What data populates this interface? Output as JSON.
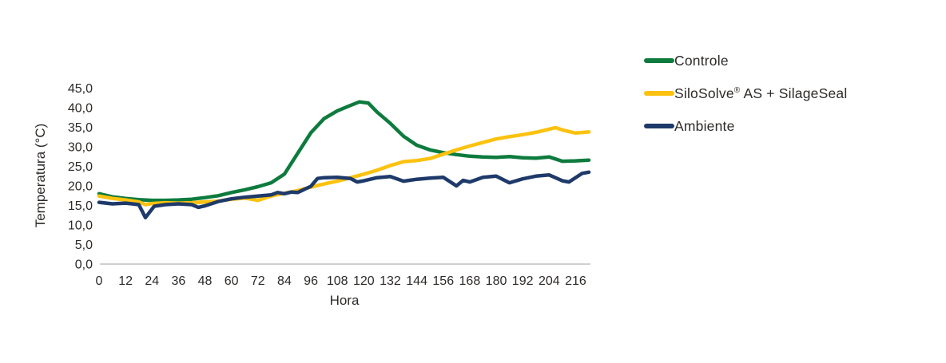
{
  "chart_data": {
    "type": "line",
    "title": "",
    "xlabel": "Hora",
    "ylabel": "Temperatura (°C)",
    "xlim": [
      0,
      222
    ],
    "ylim": [
      0,
      45
    ],
    "x_ticks": [
      0,
      12,
      24,
      36,
      48,
      60,
      72,
      84,
      96,
      108,
      120,
      132,
      144,
      156,
      168,
      180,
      192,
      204,
      216
    ],
    "y_tick_labels": [
      "0,0",
      "5,0",
      "10,0",
      "15,0",
      "20,0",
      "25,0",
      "30,0",
      "35,0",
      "40,0",
      "45,0"
    ],
    "grid": false,
    "legend_position": "right",
    "axis_line_color": "#c1c1c1",
    "text_color": "#2d2a28",
    "series": [
      {
        "name": "Controle",
        "color": "#0e7b3e",
        "points": [
          [
            0,
            18.0
          ],
          [
            6,
            17.2
          ],
          [
            12,
            16.8
          ],
          [
            18,
            16.5
          ],
          [
            24,
            16.3
          ],
          [
            30,
            16.3
          ],
          [
            36,
            16.4
          ],
          [
            42,
            16.6
          ],
          [
            48,
            17.0
          ],
          [
            54,
            17.5
          ],
          [
            60,
            18.3
          ],
          [
            66,
            19.0
          ],
          [
            72,
            19.8
          ],
          [
            78,
            20.8
          ],
          [
            84,
            23.0
          ],
          [
            90,
            28.3
          ],
          [
            96,
            33.6
          ],
          [
            102,
            37.2
          ],
          [
            108,
            39.2
          ],
          [
            114,
            40.6
          ],
          [
            118,
            41.5
          ],
          [
            122,
            41.2
          ],
          [
            126,
            38.9
          ],
          [
            132,
            36.0
          ],
          [
            138,
            32.7
          ],
          [
            144,
            30.4
          ],
          [
            150,
            29.2
          ],
          [
            156,
            28.5
          ],
          [
            162,
            28.0
          ],
          [
            168,
            27.6
          ],
          [
            174,
            27.4
          ],
          [
            180,
            27.3
          ],
          [
            186,
            27.5
          ],
          [
            192,
            27.2
          ],
          [
            198,
            27.1
          ],
          [
            204,
            27.4
          ],
          [
            210,
            26.3
          ],
          [
            216,
            26.4
          ],
          [
            222,
            26.6
          ]
        ]
      },
      {
        "name": "SiloSolve® AS + SilageSeal",
        "color": "#fcc20f",
        "points": [
          [
            0,
            17.4
          ],
          [
            6,
            16.8
          ],
          [
            12,
            16.4
          ],
          [
            18,
            15.9
          ],
          [
            21,
            15.2
          ],
          [
            24,
            15.5
          ],
          [
            30,
            15.7
          ],
          [
            36,
            15.6
          ],
          [
            42,
            15.7
          ],
          [
            48,
            15.9
          ],
          [
            54,
            16.1
          ],
          [
            60,
            16.6
          ],
          [
            66,
            16.9
          ],
          [
            72,
            16.3
          ],
          [
            78,
            17.4
          ],
          [
            84,
            18.1
          ],
          [
            90,
            18.8
          ],
          [
            96,
            19.7
          ],
          [
            102,
            20.5
          ],
          [
            108,
            21.2
          ],
          [
            114,
            22.1
          ],
          [
            120,
            23.0
          ],
          [
            126,
            24.0
          ],
          [
            132,
            25.2
          ],
          [
            138,
            26.2
          ],
          [
            144,
            26.5
          ],
          [
            150,
            27.0
          ],
          [
            156,
            28.1
          ],
          [
            162,
            29.2
          ],
          [
            168,
            30.2
          ],
          [
            174,
            31.1
          ],
          [
            180,
            32.0
          ],
          [
            186,
            32.6
          ],
          [
            192,
            33.1
          ],
          [
            198,
            33.7
          ],
          [
            204,
            34.5
          ],
          [
            207,
            34.9
          ],
          [
            210,
            34.3
          ],
          [
            216,
            33.5
          ],
          [
            222,
            33.8
          ]
        ]
      },
      {
        "name": "Ambiente",
        "color": "#1e3a6a",
        "points": [
          [
            0,
            15.8
          ],
          [
            6,
            15.4
          ],
          [
            12,
            15.6
          ],
          [
            15,
            15.4
          ],
          [
            18,
            15.2
          ],
          [
            21,
            11.9
          ],
          [
            25,
            14.8
          ],
          [
            30,
            15.2
          ],
          [
            36,
            15.4
          ],
          [
            42,
            15.2
          ],
          [
            45,
            14.5
          ],
          [
            48,
            14.9
          ],
          [
            54,
            16.0
          ],
          [
            60,
            16.7
          ],
          [
            66,
            17.1
          ],
          [
            72,
            17.4
          ],
          [
            78,
            17.7
          ],
          [
            81,
            18.3
          ],
          [
            84,
            18.0
          ],
          [
            87,
            18.4
          ],
          [
            90,
            18.3
          ],
          [
            96,
            19.9
          ],
          [
            99,
            21.9
          ],
          [
            102,
            22.1
          ],
          [
            108,
            22.2
          ],
          [
            114,
            21.9
          ],
          [
            117,
            21.0
          ],
          [
            120,
            21.3
          ],
          [
            126,
            22.1
          ],
          [
            132,
            22.4
          ],
          [
            138,
            21.2
          ],
          [
            144,
            21.7
          ],
          [
            150,
            22.0
          ],
          [
            156,
            22.2
          ],
          [
            162,
            20.0
          ],
          [
            165,
            21.4
          ],
          [
            168,
            21.0
          ],
          [
            174,
            22.2
          ],
          [
            180,
            22.5
          ],
          [
            186,
            20.8
          ],
          [
            192,
            21.8
          ],
          [
            198,
            22.5
          ],
          [
            204,
            22.8
          ],
          [
            210,
            21.3
          ],
          [
            213,
            21.0
          ],
          [
            219,
            23.2
          ],
          [
            222,
            23.5
          ]
        ]
      }
    ]
  }
}
